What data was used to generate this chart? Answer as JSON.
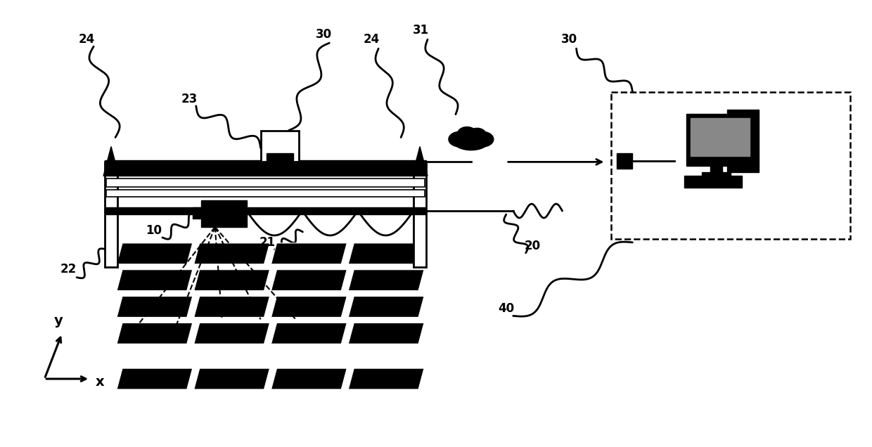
{
  "bg_color": "#ffffff",
  "line_color": "#000000",
  "label_fontsize": 12,
  "label_fontweight": "bold"
}
